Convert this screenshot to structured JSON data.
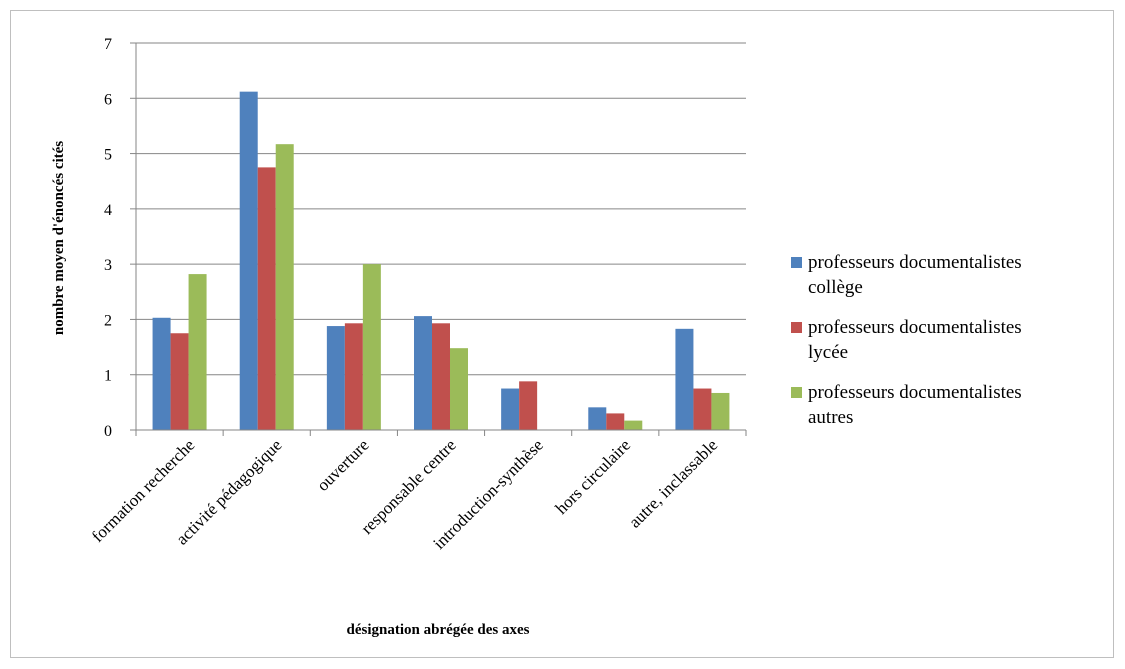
{
  "chart_data": {
    "type": "bar",
    "title": "",
    "xlabel": "désignation abrégée des axes",
    "ylabel": "nombre moyen d'énoncés cités",
    "ylim": [
      0,
      7
    ],
    "yticks": [
      0,
      1,
      2,
      3,
      4,
      5,
      6,
      7
    ],
    "grid": true,
    "legend_position": "right",
    "categories": [
      "formation recherche",
      "activité pédagogique",
      "ouverture",
      "responsable centre",
      "introduction-synthèse",
      "hors circulaire",
      "autre, inclassable"
    ],
    "series": [
      {
        "name": "professeurs documentalistes collège",
        "legend_lines": [
          "professeurs documentalistes",
          "collège"
        ],
        "color": "#4f81bd",
        "values": [
          2.03,
          6.12,
          1.88,
          2.06,
          0.75,
          0.41,
          1.83
        ]
      },
      {
        "name": "professeurs documentalistes lycée",
        "legend_lines": [
          "professeurs documentalistes",
          "lycée"
        ],
        "color": "#c0504d",
        "values": [
          1.75,
          4.75,
          1.93,
          1.93,
          0.88,
          0.3,
          0.75
        ]
      },
      {
        "name": "professeurs documentalistes autres",
        "legend_lines": [
          "professeurs documentalistes",
          "autres"
        ],
        "color": "#9bbb59",
        "values": [
          2.82,
          5.17,
          3.0,
          1.48,
          0.0,
          0.17,
          0.67
        ]
      }
    ]
  }
}
